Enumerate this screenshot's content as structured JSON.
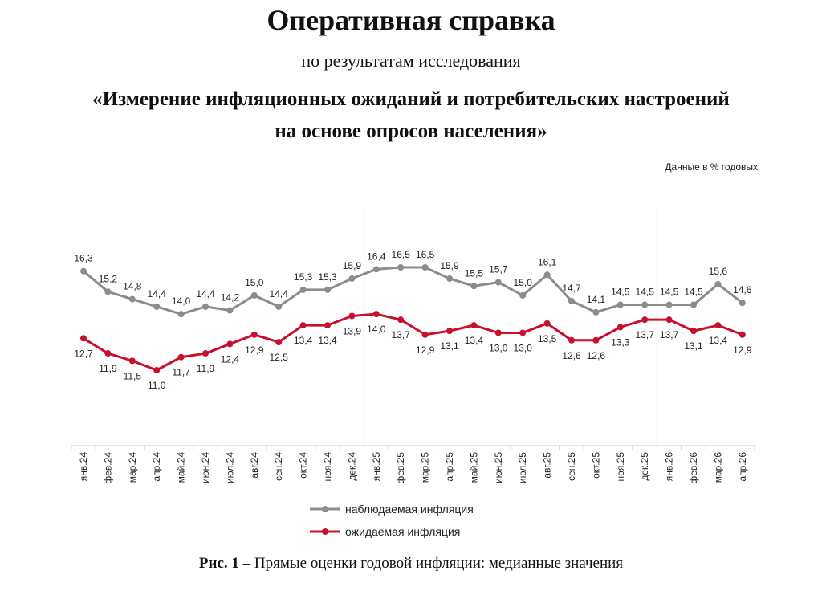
{
  "document": {
    "title": "Оперативная справка",
    "subtitle": "по результатам исследования",
    "topic_line1": "«Измерение инфляционных ожиданий и потребительских настроений",
    "topic_line2": "на основе опросов населения»",
    "units_note": "Данные в % годовых",
    "caption_lead": "Рис. 1",
    "caption_rest": " – Прямые оценки годовой инфляции: медианные значения"
  },
  "chart_data": {
    "type": "line",
    "categories": [
      "янв.24",
      "фев.24",
      "мар.24",
      "апр.24",
      "май.24",
      "июн.24",
      "июл.24",
      "авг.24",
      "сен.24",
      "окт.24",
      "ноя.24",
      "дек.24",
      "янв.25",
      "фев.25",
      "мар.25",
      "апр.25",
      "май.25",
      "июн.25",
      "июл.25",
      "авг.25",
      "сен.25",
      "окт.25",
      "ноя.25",
      "дек.25",
      "янв.26",
      "фев.26",
      "мар.26",
      "апр.26"
    ],
    "series": [
      {
        "name": "наблюдаемая инфляция",
        "color": "#8c8c8c",
        "values": [
          16.3,
          15.2,
          14.8,
          14.4,
          14.0,
          14.4,
          14.2,
          15.0,
          14.4,
          15.3,
          15.3,
          15.9,
          16.4,
          16.5,
          16.5,
          15.9,
          15.5,
          15.7,
          15.0,
          16.1,
          14.7,
          14.1,
          14.5,
          14.5,
          14.5,
          14.5,
          15.6,
          14.6
        ],
        "labels": [
          "16,3",
          "15,2",
          "14,8",
          "14,4",
          "14,0",
          "14,4",
          "14,2",
          "15,0",
          "14,4",
          "15,3",
          "15,3",
          "15,9",
          "16,4",
          "16,5",
          "16,5",
          "15,9",
          "15,5",
          "15,7",
          "15,0",
          "16,1",
          "14,7",
          "14,1",
          "14,5",
          "14,5",
          "14,5",
          "14,5",
          "15,6",
          "14,6"
        ]
      },
      {
        "name": "ожидаемая инфляция",
        "color": "#c8102e",
        "values": [
          12.7,
          11.9,
          11.5,
          11.0,
          11.7,
          11.9,
          12.4,
          12.9,
          12.5,
          13.4,
          13.4,
          13.9,
          14.0,
          13.7,
          12.9,
          13.1,
          13.4,
          13.0,
          13.0,
          13.5,
          12.6,
          12.6,
          13.3,
          13.7,
          13.7,
          13.1,
          13.4,
          12.9
        ],
        "labels": [
          "12,7",
          "11,9",
          "11,5",
          "11,0",
          "11,7",
          "11,9",
          "12,4",
          "12,9",
          "12,5",
          "13,4",
          "13,4",
          "13,9",
          "14,0",
          "13,7",
          "12,9",
          "13,1",
          "13,4",
          "13,0",
          "13,0",
          "13,5",
          "12,6",
          "12,6",
          "13,3",
          "13,7",
          "13,7",
          "13,1",
          "13,4",
          "12,9"
        ]
      }
    ],
    "year_separators_before": [
      "янв.25",
      "янв.26"
    ],
    "legend_position": "bottom-center",
    "grid": false
  }
}
